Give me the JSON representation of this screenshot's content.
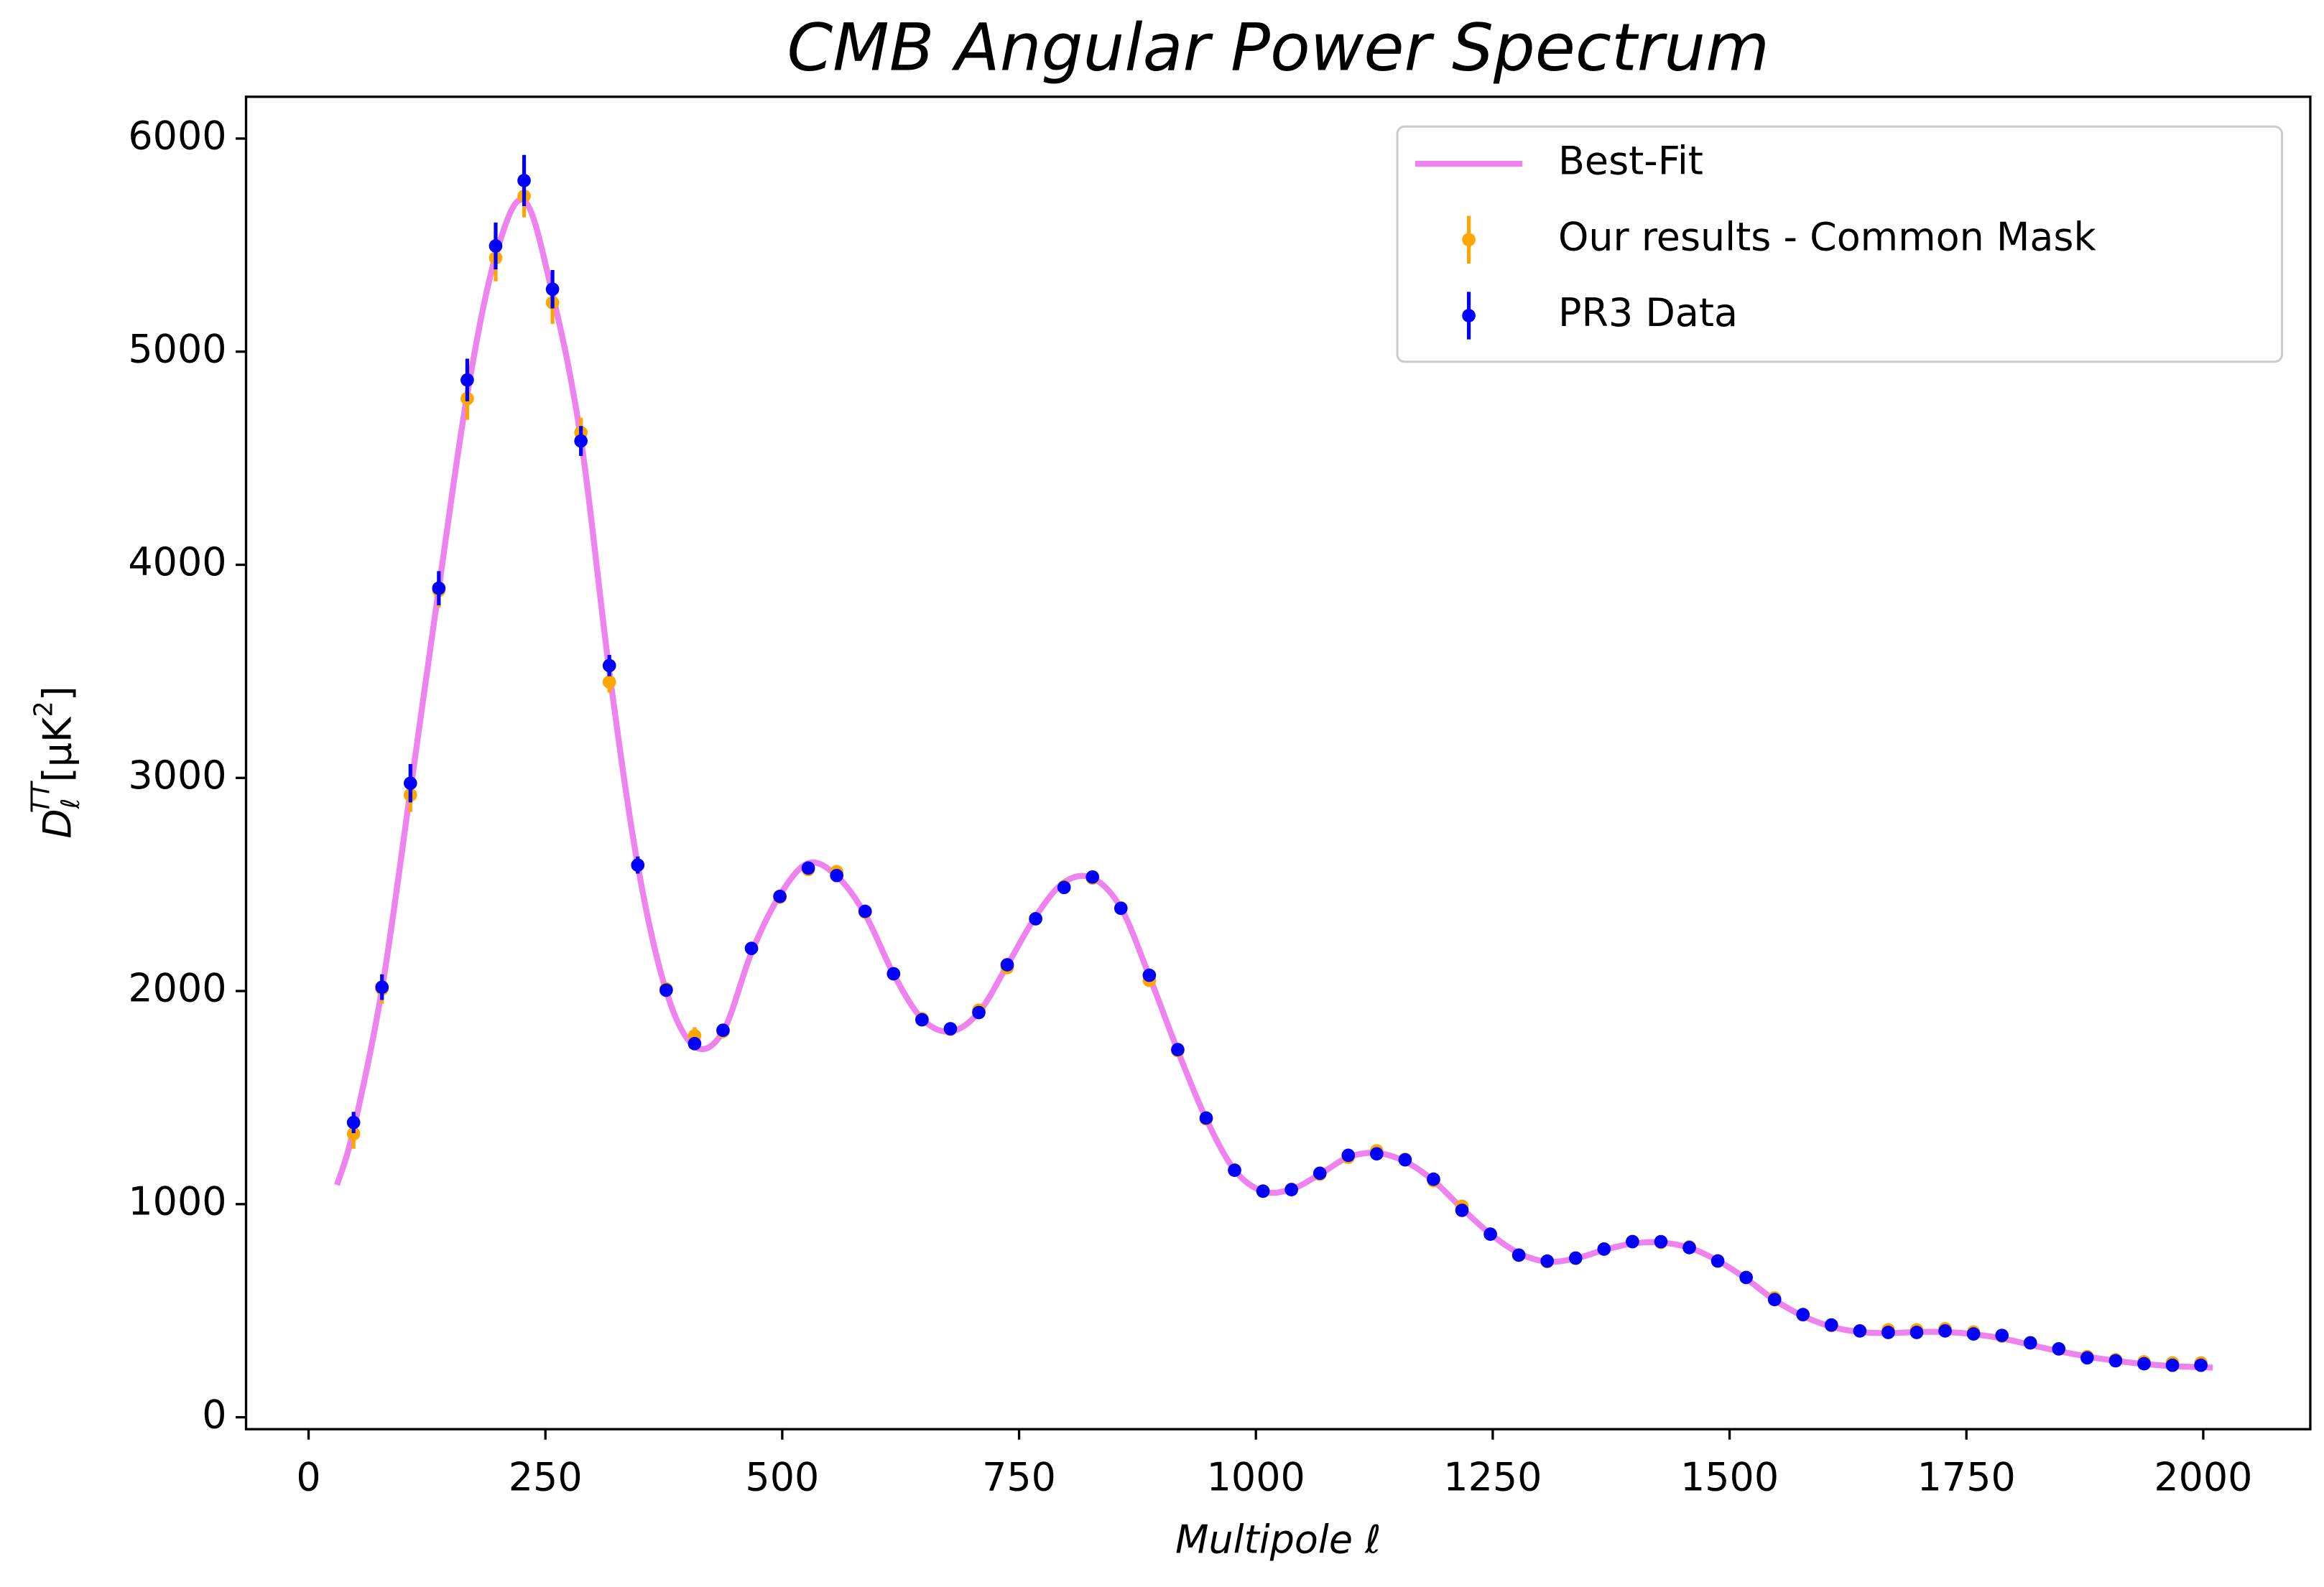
{
  "chart_data": {
    "type": "line",
    "title": "CMB Angular Power Spectrum",
    "xlabel": "Multipole ℓ",
    "ylabel": [
      "D",
      "ℓ",
      "TT",
      "[μK",
      "2",
      "]"
    ],
    "xlim": [
      -66,
      2113
    ],
    "ylim": [
      -56,
      6196
    ],
    "xticks": [
      0,
      250,
      500,
      750,
      1000,
      1250,
      1500,
      1750,
      2000
    ],
    "yticks": [
      0,
      1000,
      2000,
      3000,
      4000,
      5000,
      6000
    ],
    "legend": "upper right",
    "x": [
      47.5,
      77.5,
      107.5,
      137.5,
      167.5,
      197.5,
      227.5,
      257.5,
      287.5,
      317.5,
      347.5,
      377.5,
      407.5,
      437.5,
      467.5,
      497.5,
      527.5,
      557.5,
      587.5,
      617.5,
      647.5,
      677.5,
      707.5,
      737.5,
      767.5,
      797.5,
      827.5,
      857.5,
      887.5,
      917.5,
      947.5,
      977.5,
      1007.5,
      1037.5,
      1067.5,
      1097.5,
      1127.5,
      1157.5,
      1187.5,
      1217.5,
      1247.5,
      1277.5,
      1307.5,
      1337.5,
      1367.5,
      1397.5,
      1427.5,
      1457.5,
      1487.5,
      1517.5,
      1547.5,
      1577.5,
      1607.5,
      1637.5,
      1667.5,
      1697.5,
      1727.5,
      1757.5,
      1787.5,
      1817.5,
      1847.5,
      1877.5,
      1907.5,
      1937.5,
      1967.5,
      1997.5
    ],
    "series": [
      {
        "name": "Best-Fit",
        "type": "line",
        "color": "#ee82ee",
        "x": [
          30,
          47.5,
          77.5,
          107.5,
          137.5,
          167.5,
          197.5,
          227.5,
          257.5,
          287.5,
          317.5,
          347.5,
          377.5,
          407.5,
          437.5,
          467.5,
          497.5,
          527.5,
          557.5,
          587.5,
          617.5,
          647.5,
          677.5,
          707.5,
          737.5,
          767.5,
          797.5,
          827.5,
          857.5,
          887.5,
          917.5,
          947.5,
          977.5,
          1007.5,
          1037.5,
          1067.5,
          1097.5,
          1127.5,
          1157.5,
          1187.5,
          1217.5,
          1247.5,
          1277.5,
          1307.5,
          1337.5,
          1367.5,
          1397.5,
          1427.5,
          1457.5,
          1487.5,
          1517.5,
          1547.5,
          1577.5,
          1607.5,
          1637.5,
          1667.5,
          1697.5,
          1727.5,
          1757.5,
          1787.5,
          1817.5,
          1847.5,
          1877.5,
          1907.5,
          1937.5,
          1967.5,
          1997.5,
          2010
        ],
        "values": [
          1090,
          1350,
          2010,
          2940,
          3890,
          4800,
          5450,
          5710,
          5270,
          4590,
          3500,
          2590,
          2000,
          1740,
          1810,
          2180,
          2450,
          2600,
          2540,
          2360,
          2080,
          1870,
          1810,
          1900,
          2120,
          2350,
          2510,
          2530,
          2390,
          2070,
          1720,
          1400,
          1160,
          1060,
          1070,
          1140,
          1220,
          1240,
          1200,
          1110,
          980,
          860,
          770,
          730,
          745,
          785,
          815,
          820,
          795,
          735,
          650,
          550,
          475,
          425,
          400,
          395,
          400,
          400,
          390,
          370,
          340,
          310,
          285,
          265,
          250,
          240,
          235,
          233
        ]
      },
      {
        "name": "Our results - Common Mask",
        "type": "errorbar",
        "color": "#ffa500",
        "values": [
          1330,
          2010,
          2920,
          3880,
          4780,
          5440,
          5730,
          5230,
          4620,
          3450,
          2590,
          2010,
          1790,
          1810,
          2200,
          2440,
          2570,
          2560,
          2370,
          2080,
          1870,
          1820,
          1910,
          2110,
          2340,
          2490,
          2530,
          2390,
          2050,
          1720,
          1400,
          1160,
          1060,
          1070,
          1140,
          1220,
          1250,
          1210,
          1110,
          990,
          860,
          760,
          730,
          745,
          790,
          825,
          820,
          800,
          735,
          655,
          560,
          480,
          430,
          405,
          410,
          410,
          415,
          400,
          380,
          350,
          320,
          285,
          270,
          260,
          255,
          255
        ],
        "errors": [
          70,
          70,
          80,
          80,
          100,
          110,
          100,
          100,
          70,
          50,
          40,
          30,
          40,
          25,
          25,
          25,
          25,
          25,
          25,
          20,
          20,
          20,
          20,
          20,
          20,
          20,
          20,
          20,
          20,
          20,
          20,
          15,
          15,
          15,
          15,
          15,
          15,
          15,
          15,
          15,
          15,
          15,
          15,
          15,
          15,
          15,
          15,
          15,
          15,
          15,
          15,
          15,
          15,
          15,
          15,
          15,
          15,
          15,
          15,
          15,
          15,
          15,
          15,
          15,
          15,
          15
        ]
      },
      {
        "name": "PR3 Data",
        "type": "errorbar",
        "color": "#0000ff",
        "values": [
          1383,
          2018,
          2975,
          3890,
          4867,
          5496,
          5803,
          5293,
          4581,
          3527,
          2591,
          2004,
          1753,
          1816,
          2200,
          2444,
          2577,
          2542,
          2374,
          2081,
          1865,
          1823,
          1899,
          2123,
          2339,
          2486,
          2535,
          2388,
          2074,
          1725,
          1404,
          1159,
          1061,
          1068,
          1145,
          1229,
          1236,
          1208,
          1117,
          971,
          859,
          761,
          733,
          747,
          789,
          824,
          824,
          796,
          733,
          656,
          552,
          482,
          433,
          405,
          398,
          398,
          405,
          391,
          384,
          349,
          321,
          279,
          265,
          251,
          244,
          244
        ],
        "errors": [
          50,
          60,
          90,
          80,
          100,
          110,
          120,
          90,
          70,
          50,
          40,
          30,
          25,
          20,
          20,
          20,
          20,
          20,
          20,
          15,
          15,
          15,
          15,
          15,
          15,
          15,
          15,
          15,
          15,
          15,
          15,
          12,
          12,
          12,
          12,
          12,
          12,
          12,
          12,
          12,
          12,
          12,
          12,
          12,
          12,
          12,
          12,
          12,
          12,
          12,
          12,
          12,
          12,
          12,
          12,
          12,
          12,
          12,
          12,
          12,
          12,
          12,
          12,
          12,
          12,
          12
        ]
      }
    ]
  }
}
